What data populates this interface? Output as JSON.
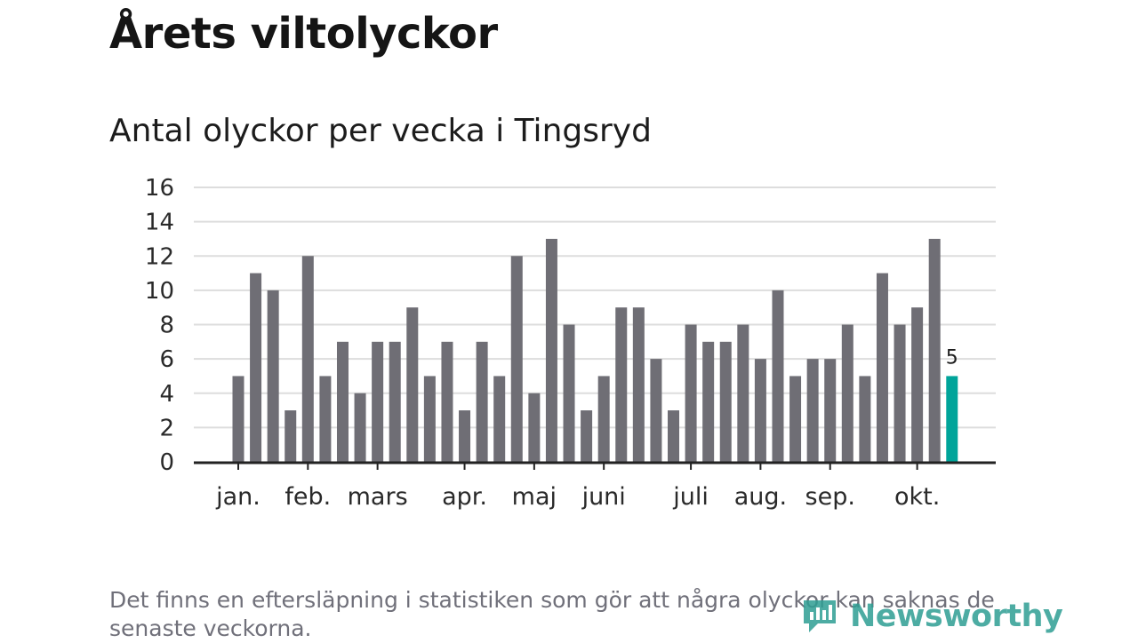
{
  "title": "Årets viltolyckor",
  "footnote": "Det finns en eftersläpning i statistiken som gör att några olyckor kan saknas de senaste veckorna.",
  "brand": {
    "name": "Newsworthy",
    "color": "#2e9e93",
    "icon": "newsworthy-logo-icon"
  },
  "colors": {
    "bar": "#6f6e75",
    "highlight": "#00a49a",
    "grid": "#dddddd",
    "axis": "#222222"
  },
  "chart_data": {
    "type": "bar",
    "title": "Antal olyckor per vecka i Tingsryd",
    "xlabel": "",
    "ylabel": "",
    "ylim": [
      0,
      16
    ],
    "yticks": [
      0,
      2,
      4,
      6,
      8,
      10,
      12,
      14,
      16
    ],
    "grid": true,
    "legend": "none",
    "values": [
      5,
      11,
      10,
      3,
      12,
      5,
      7,
      4,
      7,
      7,
      9,
      5,
      7,
      3,
      7,
      5,
      12,
      4,
      13,
      8,
      3,
      5,
      9,
      9,
      6,
      3,
      8,
      7,
      7,
      8,
      6,
      10,
      5,
      6,
      6,
      8,
      5,
      11,
      8,
      9,
      13,
      5
    ],
    "highlight_index": 41,
    "highlight_label": "5",
    "month_labels": [
      {
        "label": "jan.",
        "week_index": 0
      },
      {
        "label": "feb.",
        "week_index": 4
      },
      {
        "label": "mars",
        "week_index": 8
      },
      {
        "label": "apr.",
        "week_index": 13
      },
      {
        "label": "maj",
        "week_index": 17
      },
      {
        "label": "juni",
        "week_index": 21
      },
      {
        "label": "juli",
        "week_index": 26
      },
      {
        "label": "aug.",
        "week_index": 30
      },
      {
        "label": "sep.",
        "week_index": 34
      },
      {
        "label": "okt.",
        "week_index": 39
      }
    ]
  }
}
